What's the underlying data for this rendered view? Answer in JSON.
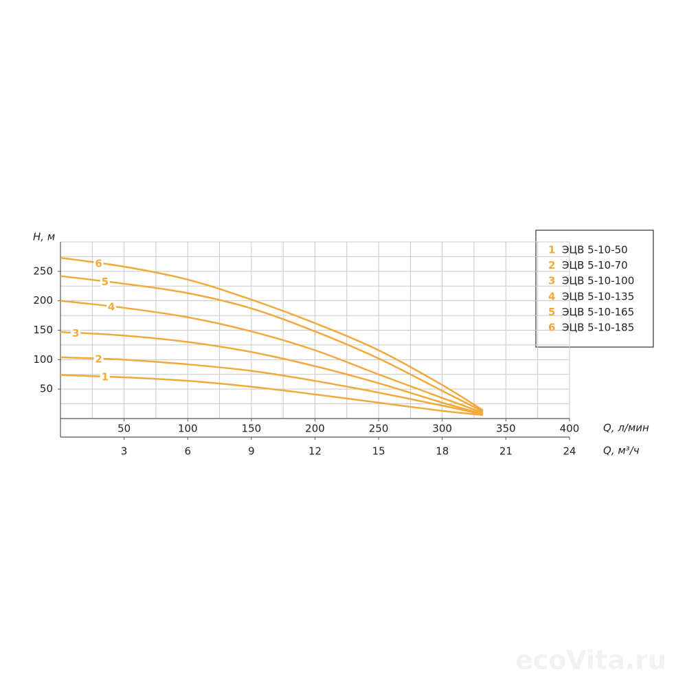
{
  "chart_data": {
    "type": "line",
    "y_label": "H, м",
    "x_label": "Q, л/мин",
    "x2_label": "Q, м³/ч",
    "x": [
      0,
      50,
      100,
      150,
      200,
      250,
      300,
      332
    ],
    "series": [
      {
        "label": "1",
        "name": "ЭЦВ 5-10-50",
        "color": "#f2a93b",
        "values": [
          74,
          70,
          64,
          54,
          41,
          27,
          13,
          6
        ]
      },
      {
        "label": "2",
        "name": "ЭЦВ 5-10-70",
        "color": "#f2a93b",
        "values": [
          104,
          100,
          92,
          81,
          64,
          44,
          22,
          7
        ]
      },
      {
        "label": "3",
        "name": "ЭЦВ 5-10-100",
        "color": "#f2a93b",
        "values": [
          147,
          141,
          130,
          113,
          89,
          60,
          27,
          8
        ]
      },
      {
        "label": "4",
        "name": "ЭЦВ 5-10-135",
        "color": "#f2a93b",
        "values": [
          200,
          188,
          172,
          148,
          116,
          75,
          35,
          10
        ]
      },
      {
        "label": "5",
        "name": "ЭЦВ 5-10-165",
        "color": "#f2a93b",
        "values": [
          242,
          229,
          213,
          187,
          148,
          102,
          47,
          12
        ]
      },
      {
        "label": "6",
        "name": "ЭЦВ 5-10-185",
        "color": "#f2a93b",
        "values": [
          273,
          258,
          236,
          202,
          162,
          116,
          57,
          14
        ]
      }
    ],
    "xlim": [
      0,
      400
    ],
    "xticks": [
      50,
      100,
      150,
      200,
      250,
      300,
      350,
      400
    ],
    "x2lim": [
      0,
      24
    ],
    "x2ticks": [
      3,
      6,
      9,
      12,
      15,
      18,
      21,
      24
    ],
    "ylim": [
      0,
      300
    ],
    "yticks": [
      50,
      100,
      150,
      200,
      250
    ],
    "grid": true,
    "grid_step": 25,
    "legend": "right",
    "watermark": "ecoVita.ru"
  }
}
